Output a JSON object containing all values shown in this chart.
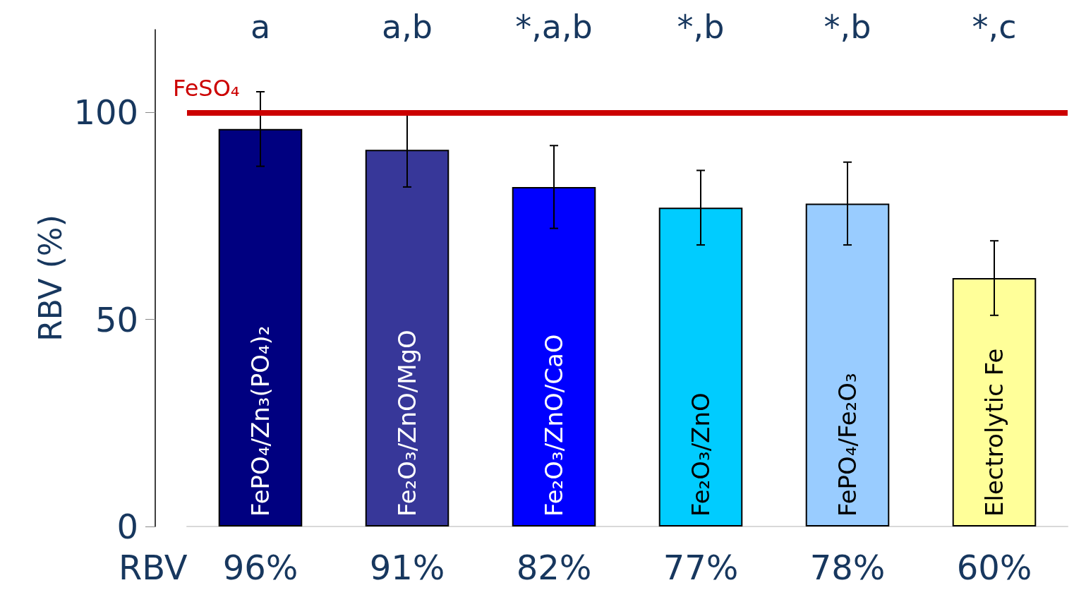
{
  "chart_data": {
    "type": "bar",
    "ylabel": "RBV (%)",
    "categories": [
      "FePO₄/Zn₃(PO₄)₂",
      "Fe₂O₃/ZnO/MgO",
      "Fe₂O₃/ZnO/CaO",
      "Fe₂O₃/ZnO",
      "FePO₄/Fe₂O₃",
      "Electrolytic Fe"
    ],
    "values": [
      96,
      91,
      82,
      77,
      78,
      60
    ],
    "colors": [
      "#000080",
      "#373799",
      "#0000ff",
      "#00ccff",
      "#99ccff",
      "#ffff99"
    ],
    "errors": [
      9,
      9,
      10,
      9,
      10,
      9
    ],
    "value_labels": [
      "96%",
      "91%",
      "82%",
      "77%",
      "78%",
      "60%"
    ],
    "ylim": [
      0,
      120
    ],
    "yticks": [
      0,
      50,
      100
    ],
    "ref_lines": [
      {
        "axis": "y",
        "value": 100,
        "label": "FeSO₄",
        "color": "#cc0000"
      }
    ],
    "annotations": [
      "RBV",
      "a",
      "a,b",
      "*,a,b",
      "*,b",
      "*,b",
      "*,c"
    ]
  }
}
